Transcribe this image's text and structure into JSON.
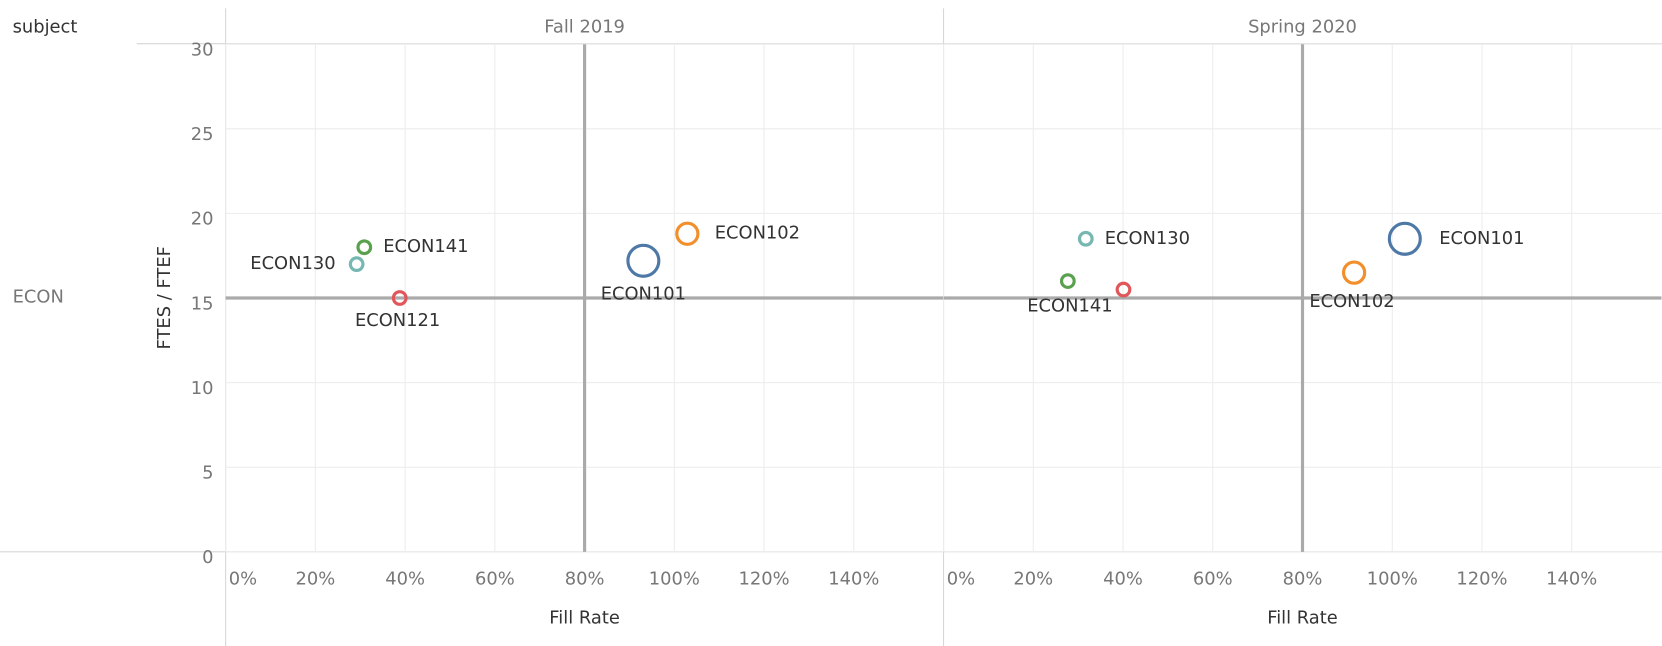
{
  "header": "subject",
  "row_label": "ECON",
  "y_label": "FTES / FTEF",
  "chart_data": [
    {
      "type": "scatter",
      "title": "Fall 2019",
      "xlabel": "Fill Rate",
      "xlim": [
        0,
        160
      ],
      "xticks": [
        {
          "value": 0,
          "label": "0%"
        },
        {
          "value": 20,
          "label": "20%"
        },
        {
          "value": 40,
          "label": "40%"
        },
        {
          "value": 60,
          "label": "60%"
        },
        {
          "value": 80,
          "label": "80%"
        },
        {
          "value": 100,
          "label": "100%"
        },
        {
          "value": 120,
          "label": "120%"
        },
        {
          "value": 140,
          "label": "140%"
        }
      ],
      "ylim": [
        0,
        30
      ],
      "yticks": [
        0,
        5,
        10,
        15,
        20,
        25,
        30
      ],
      "x_reference": 80,
      "y_reference": 15,
      "grid": true,
      "labels": [
        "ECON130",
        "ECON141",
        "ECON121",
        "ECON101",
        "ECON102"
      ],
      "x": [
        29.2,
        30.9,
        38.8,
        93.1,
        102.9
      ],
      "y": [
        17.0,
        18.0,
        15.0,
        17.2,
        18.8
      ],
      "sizes": [
        1,
        1,
        1,
        6,
        2.8
      ],
      "colors": [
        "#76b7b2",
        "#59a14f",
        "#e15759",
        "#4e79a7",
        "#f28e2b"
      ]
    },
    {
      "type": "scatter",
      "title": "Spring 2020",
      "xlabel": "Fill Rate",
      "xlim": [
        0,
        160
      ],
      "xticks": [
        {
          "value": 0,
          "label": "0%"
        },
        {
          "value": 20,
          "label": "20%"
        },
        {
          "value": 40,
          "label": "40%"
        },
        {
          "value": 60,
          "label": "60%"
        },
        {
          "value": 80,
          "label": "80%"
        },
        {
          "value": 100,
          "label": "100%"
        },
        {
          "value": 120,
          "label": "120%"
        },
        {
          "value": 140,
          "label": "140%"
        }
      ],
      "ylim": [
        0,
        30
      ],
      "yticks": [
        0,
        5,
        10,
        15,
        20,
        25,
        30
      ],
      "x_reference": 80,
      "y_reference": 15,
      "grid": true,
      "labels": [
        "ECON141",
        "ECON130",
        null,
        "ECON102",
        "ECON101"
      ],
      "x": [
        27.7,
        31.7,
        40.1,
        91.5,
        102.8
      ],
      "y": [
        16.0,
        18.5,
        15.5,
        16.5,
        18.5
      ],
      "sizes": [
        1,
        1,
        1,
        2.8,
        6
      ],
      "colors": [
        "#59a14f",
        "#76b7b2",
        "#e15759",
        "#f28e2b",
        "#4e79a7"
      ]
    }
  ]
}
